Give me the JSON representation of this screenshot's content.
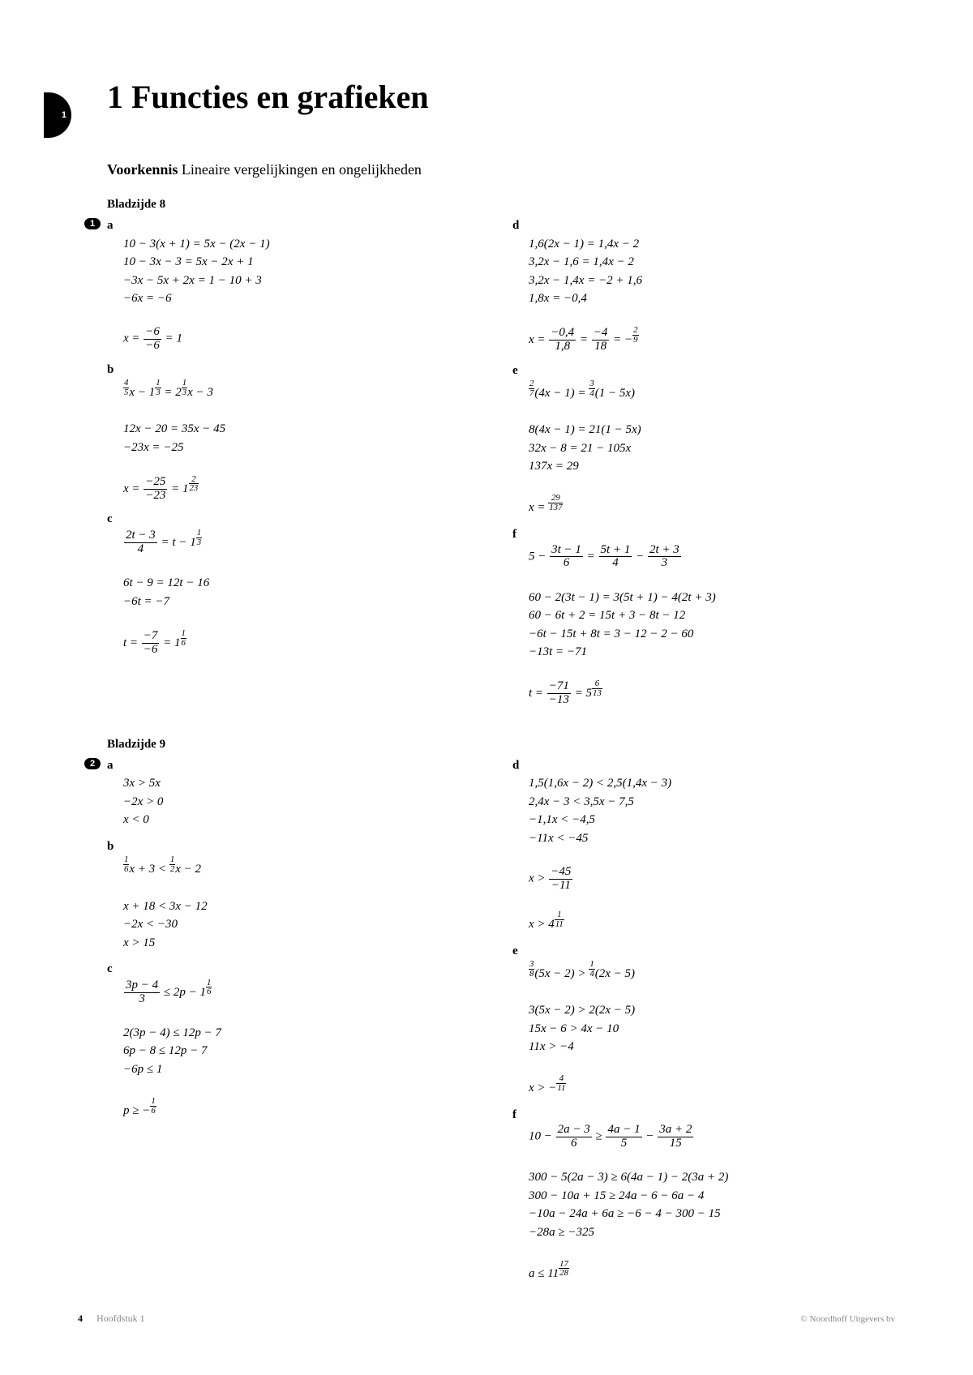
{
  "tab": "1",
  "title": "1 Functies en grafieken",
  "section_bold": "Voorkennis",
  "section_rest": " Lineaire vergelijkingen en ongelijkheden",
  "b8": "Bladzijde 8",
  "b9": "Bladzijde 9",
  "badge1": "1",
  "badge2": "2",
  "ex1": {
    "a_letter": "a",
    "a": "10 − 3(x + 1) = 5x − (2x − 1)\n10 − 3x − 3 = 5x − 2x + 1\n−3x − 5x + 2x = 1 − 10 + 3\n−6x = −6",
    "a_last_pre": "x = ",
    "a_last_num": "−6",
    "a_last_den": "−6",
    "a_last_post": " = 1",
    "b_letter": "b",
    "b_l1_pre": "",
    "b_l1_f1n": "4",
    "b_l1_f1d": "5",
    "b_l1_mid1": "x − 1",
    "b_l1_f2n": "1",
    "b_l1_f2d": "3",
    "b_l1_mid2": " = 2",
    "b_l1_f3n": "1",
    "b_l1_f3d": "3",
    "b_l1_post": "x − 3",
    "b_rest": "12x − 20 = 35x − 45\n−23x = −25",
    "b_last_pre": "x = ",
    "b_last_num": "−25",
    "b_last_den": "−23",
    "b_last_mid": " = 1",
    "b_last_sn": "2",
    "b_last_sd": "23",
    "c_letter": "c",
    "c_l1_num": "2t − 3",
    "c_l1_den": "4",
    "c_l1_mid": " = t − 1",
    "c_l1_sn": "1",
    "c_l1_sd": "3",
    "c_rest": "6t − 9 = 12t − 16\n−6t = −7",
    "c_last_pre": "t = ",
    "c_last_num": "−7",
    "c_last_den": "−6",
    "c_last_mid": " = 1",
    "c_last_sn": "1",
    "c_last_sd": "6",
    "d_letter": "d",
    "d": "1,6(2x − 1) = 1,4x − 2\n3,2x − 1,6 = 1,4x − 2\n3,2x − 1,4x = −2 + 1,6\n1,8x = −0,4",
    "d_last_pre": "x = ",
    "d_last_n1": "−0,4",
    "d_last_d1": "1,8",
    "d_last_mid": " = ",
    "d_last_n2": "−4",
    "d_last_d2": "18",
    "d_last_mid2": " = −",
    "d_last_sn": "2",
    "d_last_sd": "9",
    "e_letter": "e",
    "e_l1_f1n": "2",
    "e_l1_f1d": "7",
    "e_l1_mid1": "(4x − 1) = ",
    "e_l1_f2n": "3",
    "e_l1_f2d": "4",
    "e_l1_post": "(1 − 5x)",
    "e_rest": "8(4x − 1) = 21(1 − 5x)\n32x − 8 = 21 − 105x\n137x = 29",
    "e_last_pre": "x = ",
    "e_last_sn": "29",
    "e_last_sd": "137",
    "f_letter": "f",
    "f_l1_pre": "5 − ",
    "f_l1_n1": "3t − 1",
    "f_l1_d1": "6",
    "f_l1_m1": " = ",
    "f_l1_n2": "5t + 1",
    "f_l1_d2": "4",
    "f_l1_m2": " − ",
    "f_l1_n3": "2t + 3",
    "f_l1_d3": "3",
    "f_rest": "60 − 2(3t − 1) = 3(5t + 1) − 4(2t + 3)\n60 − 6t + 2 = 15t + 3 − 8t − 12\n−6t − 15t + 8t = 3 − 12 − 2 − 60\n−13t = −71",
    "f_last_pre": "t = ",
    "f_last_num": "−71",
    "f_last_den": "−13",
    "f_last_mid": " = 5",
    "f_last_sn": "6",
    "f_last_sd": "13"
  },
  "ex2": {
    "a_letter": "a",
    "a": "3x > 5x\n−2x > 0\nx < 0",
    "b_letter": "b",
    "b_l1_f1n": "1",
    "b_l1_f1d": "6",
    "b_l1_mid1": "x + 3 < ",
    "b_l1_f2n": "1",
    "b_l1_f2d": "2",
    "b_l1_post": "x − 2",
    "b_rest": "x + 18 < 3x − 12\n−2x < −30\nx > 15",
    "c_letter": "c",
    "c_l1_num": "3p − 4",
    "c_l1_den": "3",
    "c_l1_mid": " ≤ 2p − 1",
    "c_l1_sn": "1",
    "c_l1_sd": "6",
    "c_rest": "2(3p − 4) ≤ 12p − 7\n6p − 8 ≤ 12p − 7\n−6p ≤ 1",
    "c_last_pre": "p ≥ −",
    "c_last_sn": "1",
    "c_last_sd": "6",
    "d_letter": "d",
    "d": "1,5(1,6x − 2) < 2,5(1,4x − 3)\n2,4x − 3 < 3,5x − 7,5\n−1,1x < −4,5\n−11x < −45",
    "d_l5_pre": "x > ",
    "d_l5_num": "−45",
    "d_l5_den": "−11",
    "d_last_pre": "x > 4",
    "d_last_sn": "1",
    "d_last_sd": "11",
    "e_letter": "e",
    "e_l1_f1n": "3",
    "e_l1_f1d": "8",
    "e_l1_mid1": "(5x − 2) > ",
    "e_l1_f2n": "1",
    "e_l1_f2d": "4",
    "e_l1_post": "(2x − 5)",
    "e_rest": "3(5x − 2) > 2(2x − 5)\n15x − 6 > 4x − 10\n11x > −4",
    "e_last_pre": "x > −",
    "e_last_sn": "4",
    "e_last_sd": "11",
    "f_letter": "f",
    "f_l1_pre": "10 − ",
    "f_l1_n1": "2a − 3",
    "f_l1_d1": "6",
    "f_l1_m1": " ≥ ",
    "f_l1_n2": "4a − 1",
    "f_l1_d2": "5",
    "f_l1_m2": " − ",
    "f_l1_n3": "3a + 2",
    "f_l1_d3": "15",
    "f_rest": "300 − 5(2a − 3) ≥ 6(4a − 1) − 2(3a + 2)\n300 − 10a + 15 ≥ 24a − 6 − 6a − 4\n−10a − 24a + 6a ≥ −6 − 4 − 300 − 15\n−28a ≥ −325",
    "f_last_pre": "a ≤ 11",
    "f_last_sn": "17",
    "f_last_sd": "28"
  },
  "footer": {
    "page": "4",
    "chapter": "Hoofdstuk 1",
    "publisher": "© Noordhoff Uitgevers bv"
  }
}
